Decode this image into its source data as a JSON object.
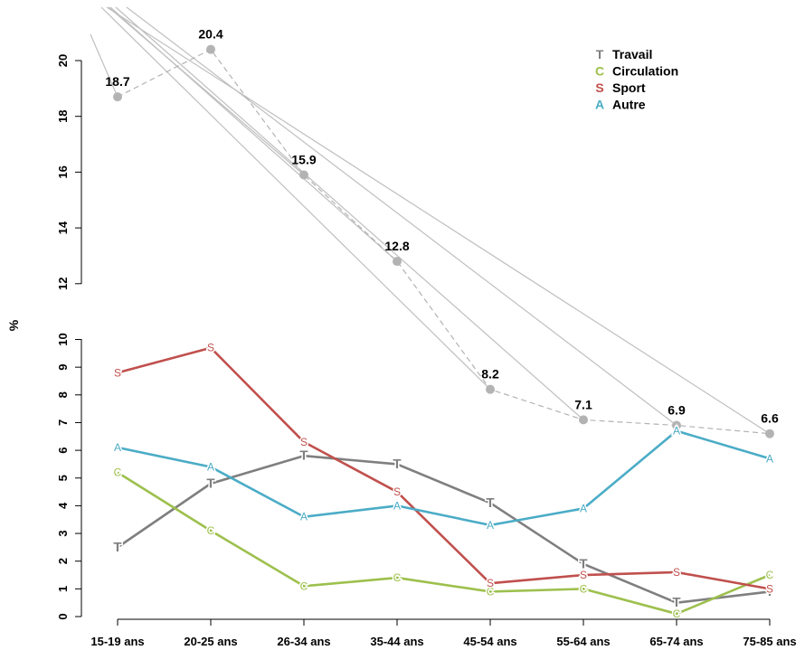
{
  "chart_data": {
    "type": "line",
    "categories": [
      "15-19 ans",
      "20-25 ans",
      "26-34 ans",
      "35-44 ans",
      "45-54 ans",
      "55-64 ans",
      "65-74 ans",
      "75-85 ans"
    ],
    "ylabel": "%",
    "y_ticks_lower": [
      "0",
      "1",
      "2",
      "3",
      "4",
      "5",
      "6",
      "7",
      "8",
      "9",
      "10"
    ],
    "y_ticks_upper": [
      "12",
      "14",
      "16",
      "18",
      "20"
    ],
    "legend_position": "top-right",
    "series": [
      {
        "name": "Travail",
        "marker": "T",
        "color": "#7f7f7f",
        "values": [
          2.5,
          4.8,
          5.8,
          5.5,
          4.1,
          1.9,
          0.5,
          0.9
        ]
      },
      {
        "name": "Circulation",
        "marker": "C",
        "color": "#9dc04d",
        "values": [
          5.2,
          3.1,
          1.1,
          1.4,
          0.9,
          1.0,
          0.1,
          1.5
        ]
      },
      {
        "name": "Sport",
        "marker": "S",
        "color": "#c0504d",
        "values": [
          8.8,
          9.7,
          6.3,
          4.5,
          1.2,
          1.5,
          1.6,
          1.0
        ]
      },
      {
        "name": "Autre",
        "marker": "A",
        "color": "#4bacc6",
        "values": [
          6.1,
          5.4,
          3.6,
          4.0,
          3.3,
          3.9,
          6.7,
          5.7
        ]
      }
    ],
    "total": {
      "values": [
        18.7,
        20.4,
        15.9,
        12.8,
        8.2,
        7.1,
        6.9,
        6.6
      ],
      "labels": [
        "18.7",
        "20.4",
        "15.9",
        "12.8",
        "8.2",
        "7.1",
        "6.9",
        "6.6"
      ],
      "color": "#b3b3b3"
    }
  }
}
